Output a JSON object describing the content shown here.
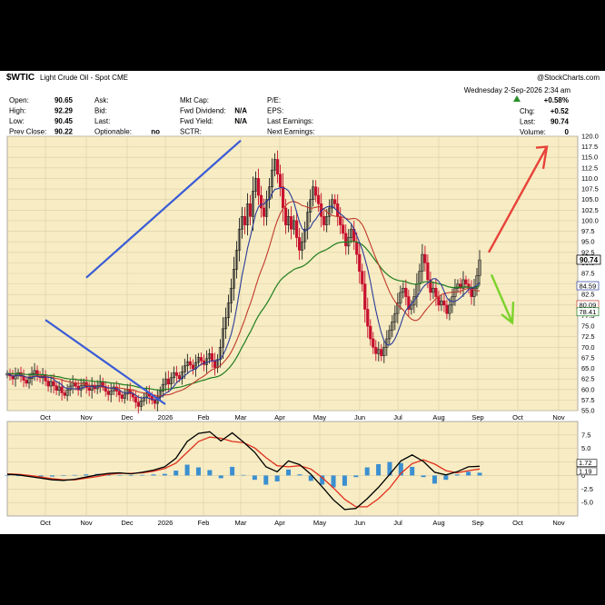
{
  "header": {
    "symbol": "$WTIC",
    "name": "Light Crude Oil - Spot",
    "exchange": "CME",
    "watermark": "@StockCharts.com",
    "date_line": "Wednesday   2-Sep-2026  2:34 am",
    "pct_change": "+0.58%",
    "col1": [
      {
        "label": "Open:",
        "value": "90.65"
      },
      {
        "label": "High:",
        "value": "92.29"
      },
      {
        "label": "Low:",
        "value": "90.45"
      },
      {
        "label": "Prev Close:",
        "value": "90.22"
      }
    ],
    "col2": [
      {
        "label": "Ask:",
        "value": ""
      },
      {
        "label": "Bid:",
        "value": ""
      },
      {
        "label": "Last:",
        "value": ""
      },
      {
        "label": "Optionable:",
        "value": "no"
      }
    ],
    "col3": [
      {
        "label": "Mkt Cap:",
        "value": ""
      },
      {
        "label": "Fwd Dividend:",
        "value": "N/A"
      },
      {
        "label": "Fwd Yield:",
        "value": "N/A"
      },
      {
        "label": "SCTR:",
        "value": ""
      }
    ],
    "col4": [
      {
        "label": "P/E:",
        "value": ""
      },
      {
        "label": "EPS:",
        "value": ""
      },
      {
        "label": "Last Earnings:",
        "value": ""
      },
      {
        "label": "Next Earnings:",
        "value": ""
      }
    ],
    "col5": [
      {
        "label": "Chg:",
        "value": "+0.52"
      },
      {
        "label": "Last:",
        "value": "90.74"
      },
      {
        "label": "Volume:",
        "value": "0"
      }
    ]
  },
  "colors": {
    "panel_bg": "#f7ecc3",
    "up_candle": "#222222",
    "down_candle": "#c8102e",
    "sma_fast": "#2a3b9a",
    "sma_mid": "#c0392b",
    "sma_slow": "#1e7d1e",
    "trendline": "#3a5bd6",
    "arrow_up": "#e8433a",
    "arrow_down": "#7bd32a",
    "macd_line": "#000000",
    "signal_line": "#e0301e",
    "histogram": "#3b8fd1"
  },
  "chart_data": [
    {
      "type": "candlestick",
      "title": "$WTIC Light Crude Oil - Spot CME",
      "ylim": [
        55,
        120
      ],
      "y_ticks": [
        "120.0",
        "117.5",
        "115.0",
        "112.5",
        "110.0",
        "107.5",
        "105.0",
        "102.5",
        "100.0",
        "97.5",
        "95.0",
        "92.5",
        "90.0",
        "87.5",
        "85.0",
        "82.5",
        "80.0",
        "77.5",
        "75.0",
        "72.5",
        "70.0",
        "67.5",
        "65.0",
        "62.5",
        "60.0",
        "57.5",
        "55.0"
      ],
      "x_ticks": [
        "Oct",
        "Nov",
        "Dec",
        "2026",
        "Feb",
        "Mar",
        "Apr",
        "May",
        "Jun",
        "Jul",
        "Aug",
        "Sep",
        "Oct",
        "Nov"
      ],
      "price_labels": [
        {
          "value": "90.74",
          "y": 90.74,
          "style": "boxed"
        },
        {
          "value": "84.59",
          "y": 84.59,
          "color": "#2a3b9a"
        },
        {
          "value": "80.09",
          "y": 80.09,
          "color": "#c0392b"
        },
        {
          "value": "78.41",
          "y": 78.41,
          "color": "#1e7d1e"
        }
      ],
      "close": [
        63.8,
        63.2,
        62.5,
        63.4,
        64.0,
        63.1,
        62.2,
        61.5,
        62.6,
        63.8,
        64.5,
        63.2,
        62.8,
        63.5,
        62.0,
        60.8,
        61.9,
        60.9,
        59.8,
        60.6,
        59.2,
        58.6,
        59.9,
        60.8,
        61.6,
        60.8,
        59.9,
        60.9,
        61.7,
        60.4,
        59.8,
        61.0,
        60.2,
        60.9,
        61.8,
        60.7,
        59.6,
        58.8,
        59.7,
        60.6,
        59.6,
        58.7,
        57.9,
        58.9,
        59.8,
        59.0,
        58.2,
        57.0,
        56.0,
        57.3,
        58.1,
        59.2,
        58.4,
        57.5,
        56.7,
        58.2,
        59.6,
        61.2,
        62.5,
        61.3,
        62.8,
        64.0,
        63.3,
        62.6,
        64.2,
        65.6,
        66.6,
        65.8,
        64.9,
        66.4,
        67.6,
        66.8,
        65.9,
        67.3,
        68.5,
        66.8,
        65.2,
        67.1,
        70.0,
        74.4,
        77.0,
        80.5,
        84.0,
        88.5,
        93.0,
        98.0,
        101.0,
        99.0,
        104.0,
        101.0,
        107.0,
        110.0,
        106.0,
        103.0,
        101.0,
        105.0,
        108.0,
        112.0,
        114.5,
        111.0,
        108.0,
        103.0,
        99.0,
        101.0,
        98.0,
        100.0,
        96.0,
        93.0,
        95.0,
        98.0,
        102.0,
        105.0,
        108.0,
        106.0,
        104.0,
        101.0,
        99.0,
        101.0,
        103.0,
        105.0,
        104.0,
        101.0,
        99.0,
        97.0,
        94.0,
        96.0,
        98.0,
        95.0,
        92.0,
        88.0,
        85.0,
        79.0,
        75.0,
        72.0,
        70.0,
        68.5,
        69.5,
        68.0,
        70.0,
        72.0,
        74.0,
        76.0,
        78.0,
        80.5,
        83.0,
        84.0,
        82.0,
        79.0,
        80.0,
        82.0,
        85.0,
        88.0,
        92.0,
        90.0,
        86.0,
        83.0,
        84.0,
        82.0,
        80.0,
        81.0,
        80.0,
        78.0,
        80.0,
        82.0,
        84.0,
        85.0,
        84.0,
        86.0,
        85.0,
        84.0,
        82.0,
        84.0,
        87.0,
        90.7
      ],
      "overlays": [
        {
          "name": "SMA fast",
          "role": "sma_fast"
        },
        {
          "name": "SMA mid",
          "role": "sma_mid"
        },
        {
          "name": "SMA slow",
          "role": "sma_slow"
        }
      ],
      "trendlines": [
        {
          "name": "upper",
          "from": {
            "date": "Mar",
            "value": 119.0
          },
          "to": {
            "date": "Nov",
            "value": 86.5
          }
        },
        {
          "name": "lower",
          "from": {
            "date": "2026",
            "value": 56.5
          },
          "to": {
            "date": "Oct",
            "value": 76.5
          }
        }
      ]
    },
    {
      "type": "line",
      "title": "MACD",
      "ylim": [
        -7.5,
        10
      ],
      "y_ticks": [
        "7.5",
        "5.0",
        "2.5",
        "0",
        "-2.5",
        "-5.0"
      ],
      "x_ticks": [
        "Oct",
        "Nov",
        "Dec",
        "2026",
        "Feb",
        "Mar",
        "Apr",
        "May",
        "Jun",
        "Jul",
        "Aug",
        "Sep",
        "Oct",
        "Nov"
      ],
      "value_labels": [
        "1.72",
        "1.19"
      ],
      "series": [
        {
          "name": "MACD",
          "values": [
            0.2,
            0.1,
            -0.2,
            -0.5,
            -0.8,
            -0.9,
            -0.7,
            -0.3,
            0.1,
            0.4,
            0.5,
            0.3,
            0.6,
            1.0,
            1.6,
            3.2,
            6.3,
            7.8,
            8.1,
            6.4,
            7.9,
            6.2,
            4.3,
            1.6,
            0.7,
            2.7,
            2.0,
            0.2,
            -2.1,
            -4.5,
            -6.3,
            -6.1,
            -4.3,
            -2.2,
            0.2,
            2.7,
            3.8,
            2.6,
            0.6,
            0.1,
            0.7,
            1.6,
            1.7
          ]
        },
        {
          "name": "Signal",
          "values": [
            0.3,
            0.2,
            0.0,
            -0.3,
            -0.6,
            -0.8,
            -0.8,
            -0.5,
            -0.2,
            0.2,
            0.4,
            0.4,
            0.5,
            0.8,
            1.3,
            2.3,
            4.3,
            6.3,
            7.1,
            6.9,
            6.3,
            6.1,
            5.1,
            3.3,
            1.8,
            1.6,
            1.8,
            1.2,
            -0.4,
            -2.3,
            -4.4,
            -5.8,
            -5.8,
            -4.3,
            -2.3,
            0.4,
            2.2,
            2.9,
            2.1,
            0.9,
            0.5,
            0.9,
            1.2
          ]
        }
      ]
    }
  ]
}
